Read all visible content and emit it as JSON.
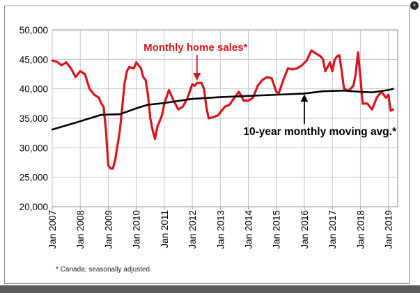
{
  "chart_data": {
    "type": "line",
    "title": "",
    "xlabel": "",
    "ylabel": "",
    "ylim": [
      20000,
      50000
    ],
    "xlim": [
      "2007-01",
      "2019-05"
    ],
    "grid": true,
    "legend": "none",
    "y_ticks": [
      "20,000",
      "25,000",
      "30,000",
      "35,000",
      "40,000",
      "45,000",
      "50,000"
    ],
    "y_tick_values": [
      20000,
      25000,
      30000,
      35000,
      40000,
      45000,
      50000
    ],
    "x_ticks": [
      "Jan 2007",
      "Jan 2008",
      "Jan 2009",
      "Jan 2010",
      "Jan 2011",
      "Jan 2012",
      "Jan 2013",
      "Jan 2014",
      "Jan 2015",
      "Jan 2016",
      "Jan 2017",
      "Jan 2018",
      "Jan 2019"
    ],
    "x_tick_values": [
      "2007-01",
      "2008-01",
      "2009-01",
      "2010-01",
      "2011-01",
      "2012-01",
      "2013-01",
      "2014-01",
      "2015-01",
      "2016-01",
      "2017-01",
      "2018-01",
      "2019-01"
    ],
    "series": [
      {
        "color": "#d9141c",
        "points": [
          [
            "2007-01",
            44800
          ],
          [
            "2007-03",
            44600
          ],
          [
            "2007-05",
            44000
          ],
          [
            "2007-07",
            44500
          ],
          [
            "2007-09",
            43500
          ],
          [
            "2007-11",
            42000
          ],
          [
            "2008-01",
            43000
          ],
          [
            "2008-03",
            42500
          ],
          [
            "2008-05",
            40000
          ],
          [
            "2008-07",
            39000
          ],
          [
            "2008-09",
            38500
          ],
          [
            "2008-10",
            37500
          ],
          [
            "2008-11",
            37000
          ],
          [
            "2008-12",
            33000
          ],
          [
            "2009-01",
            27000
          ],
          [
            "2009-02",
            26500
          ],
          [
            "2009-03",
            26500
          ],
          [
            "2009-04",
            28000
          ],
          [
            "2009-05",
            30500
          ],
          [
            "2009-06",
            33000
          ],
          [
            "2009-07",
            37000
          ],
          [
            "2009-08",
            41000
          ],
          [
            "2009-09",
            43000
          ],
          [
            "2009-10",
            43700
          ],
          [
            "2009-12",
            43500
          ],
          [
            "2010-01",
            44500
          ],
          [
            "2010-03",
            43500
          ],
          [
            "2010-04",
            42000
          ],
          [
            "2010-05",
            41500
          ],
          [
            "2010-06",
            39000
          ],
          [
            "2010-07",
            35000
          ],
          [
            "2010-08",
            33000
          ],
          [
            "2010-09",
            31500
          ],
          [
            "2010-10",
            33500
          ],
          [
            "2010-12",
            35500
          ],
          [
            "2011-01",
            37500
          ],
          [
            "2011-03",
            39800
          ],
          [
            "2011-05",
            38000
          ],
          [
            "2011-07",
            36500
          ],
          [
            "2011-09",
            37000
          ],
          [
            "2011-11",
            38500
          ],
          [
            "2012-01",
            40800
          ],
          [
            "2012-02",
            40500
          ],
          [
            "2012-03",
            41000
          ],
          [
            "2012-05",
            41000
          ],
          [
            "2012-06",
            40000
          ],
          [
            "2012-07",
            37000
          ],
          [
            "2012-08",
            35000
          ],
          [
            "2012-10",
            35200
          ],
          [
            "2012-12",
            35500
          ],
          [
            "2013-01",
            36000
          ],
          [
            "2013-03",
            37000
          ],
          [
            "2013-05",
            37300
          ],
          [
            "2013-07",
            38500
          ],
          [
            "2013-09",
            39500
          ],
          [
            "2013-11",
            38000
          ],
          [
            "2014-01",
            38000
          ],
          [
            "2014-03",
            38500
          ],
          [
            "2014-05",
            40500
          ],
          [
            "2014-07",
            41500
          ],
          [
            "2014-09",
            42000
          ],
          [
            "2014-11",
            41800
          ],
          [
            "2015-01",
            39500
          ],
          [
            "2015-02",
            39200
          ],
          [
            "2015-04",
            41500
          ],
          [
            "2015-06",
            43500
          ],
          [
            "2015-08",
            43300
          ],
          [
            "2015-10",
            43500
          ],
          [
            "2015-12",
            44000
          ],
          [
            "2016-02",
            44800
          ],
          [
            "2016-04",
            46500
          ],
          [
            "2016-06",
            46000
          ],
          [
            "2016-08",
            45500
          ],
          [
            "2016-09",
            45000
          ],
          [
            "2016-10",
            43000
          ],
          [
            "2016-12",
            44500
          ],
          [
            "2017-01",
            43000
          ],
          [
            "2017-02",
            45000
          ],
          [
            "2017-03",
            45500
          ],
          [
            "2017-04",
            45700
          ],
          [
            "2017-05",
            43000
          ],
          [
            "2017-06",
            40000
          ],
          [
            "2017-08",
            39700
          ],
          [
            "2017-10",
            40500
          ],
          [
            "2017-11",
            42500
          ],
          [
            "2017-12",
            46200
          ],
          [
            "2018-01",
            42000
          ],
          [
            "2018-02",
            37500
          ],
          [
            "2018-04",
            37500
          ],
          [
            "2018-06",
            36500
          ],
          [
            "2018-08",
            38500
          ],
          [
            "2018-10",
            39500
          ],
          [
            "2018-11",
            39000
          ],
          [
            "2018-12",
            38500
          ],
          [
            "2019-01",
            39000
          ],
          [
            "2019-02",
            36300
          ],
          [
            "2019-03",
            36500
          ]
        ]
      },
      {
        "color": "#000000",
        "points": [
          [
            "2007-01",
            33100
          ],
          [
            "2008-01",
            34500
          ],
          [
            "2008-10",
            35600
          ],
          [
            "2009-06",
            35700
          ],
          [
            "2010-01",
            36700
          ],
          [
            "2010-06",
            37300
          ],
          [
            "2011-01",
            37600
          ],
          [
            "2012-01",
            38300
          ],
          [
            "2013-01",
            38600
          ],
          [
            "2014-01",
            38800
          ],
          [
            "2015-01",
            39000
          ],
          [
            "2016-01",
            39200
          ],
          [
            "2016-09",
            39600
          ],
          [
            "2017-06",
            39700
          ],
          [
            "2018-01",
            39500
          ],
          [
            "2018-06",
            39400
          ],
          [
            "2019-01",
            39800
          ],
          [
            "2019-03",
            40000
          ]
        ]
      }
    ],
    "annotations": [
      {
        "text": "Monthly home sales*",
        "color": "#d9141c",
        "arrow_to": [
          "2012-03",
          41300
        ]
      },
      {
        "text": "10-year monthly moving avg.*",
        "color": "#000000",
        "arrow_to": [
          "2016-01",
          39300
        ]
      }
    ]
  },
  "footnote": "* Canada; seasonally adjusted"
}
